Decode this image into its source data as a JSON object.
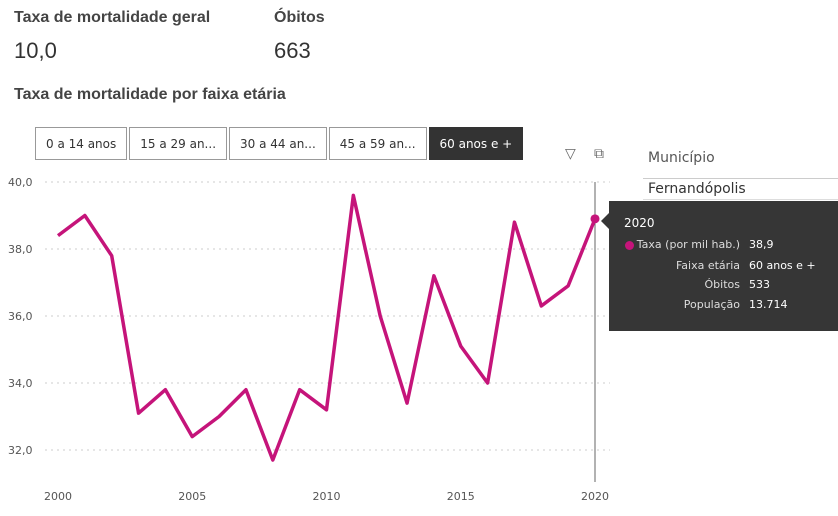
{
  "kpis": [
    {
      "label": "Taxa de mortalidade geral",
      "value": "10,0"
    },
    {
      "label": "Óbitos",
      "value": "663"
    }
  ],
  "section_title": "Taxa de mortalidade por faixa etária",
  "slicer": {
    "options": [
      "0 a 14 anos",
      "15 a 29 an...",
      "30 a 44 an...",
      "45 a 59 an...",
      "60 anos e +"
    ],
    "selected": 4
  },
  "municipio": {
    "label": "Município",
    "items": [
      "Fernandópolis"
    ]
  },
  "tooltip": {
    "year": "2020",
    "rows": [
      {
        "k": "Taxa (por mil hab.)",
        "v": "38,9"
      },
      {
        "k": "Faixa etária",
        "v": "60 anos e +"
      },
      {
        "k": "Óbitos",
        "v": "533"
      },
      {
        "k": "População",
        "v": "13.714"
      }
    ]
  },
  "colors": {
    "line": "#c5147a"
  },
  "chart_data": {
    "type": "line",
    "title": "Taxa de mortalidade por faixa etária",
    "x": [
      2000,
      2001,
      2002,
      2003,
      2004,
      2005,
      2006,
      2007,
      2008,
      2009,
      2010,
      2011,
      2012,
      2013,
      2014,
      2015,
      2016,
      2017,
      2018,
      2019,
      2020
    ],
    "series": [
      {
        "name": "Taxa (por mil hab.)",
        "values": [
          38.4,
          39.0,
          37.8,
          33.1,
          33.8,
          32.4,
          33.0,
          33.8,
          31.7,
          33.8,
          33.2,
          39.6,
          36.0,
          33.4,
          37.2,
          35.1,
          34.0,
          38.8,
          36.3,
          36.9,
          38.9
        ]
      }
    ],
    "ylim": [
      31.2,
      40
    ],
    "yticks": [
      "40,0",
      "38,0",
      "36,0",
      "34,0",
      "32,0"
    ],
    "ytick_values": [
      40,
      38,
      36,
      34,
      32
    ],
    "xticks": [
      "2000",
      "2005",
      "2010",
      "2015",
      "2020"
    ],
    "xtick_values": [
      2000,
      2005,
      2010,
      2015,
      2020
    ],
    "grid": true,
    "highlight": 2020
  }
}
